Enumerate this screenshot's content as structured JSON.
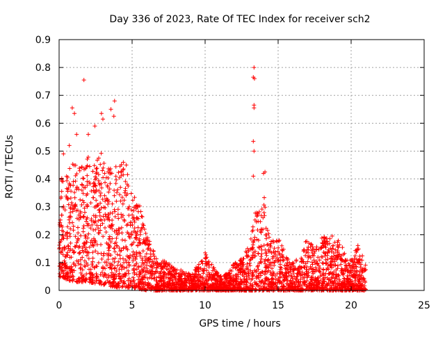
{
  "chart_data": {
    "type": "scatter",
    "title": "Day 336 of 2023, Rate Of TEC Index for receiver sch2",
    "xlabel": "GPS time / hours",
    "ylabel": "ROTI / TECUs",
    "xlim": [
      0,
      25
    ],
    "ylim": [
      0,
      0.9
    ],
    "x_ticks": [
      "0",
      "5",
      "10",
      "15",
      "20",
      "25"
    ],
    "y_ticks": [
      "0",
      "0.1",
      "0.2",
      "0.3",
      "0.4",
      "0.5",
      "0.6",
      "0.7",
      "0.8",
      "0.9"
    ],
    "x_tick_values": [
      0,
      5,
      10,
      15,
      20,
      25
    ],
    "y_tick_values": [
      0,
      0.1,
      0.2,
      0.3,
      0.4,
      0.5,
      0.6,
      0.7,
      0.8,
      0.9
    ],
    "grid": true,
    "marker": "+",
    "color": "#ff0000",
    "series": [
      {
        "name": "ROTI",
        "outliers": [
          [
            1.7,
            0.755
          ],
          [
            0.9,
            0.655
          ],
          [
            1.05,
            0.635
          ],
          [
            3.8,
            0.68
          ],
          [
            3.55,
            0.65
          ],
          [
            3.75,
            0.625
          ],
          [
            2.9,
            0.635
          ],
          [
            3.0,
            0.615
          ],
          [
            2.45,
            0.59
          ],
          [
            2.0,
            0.56
          ],
          [
            1.2,
            0.56
          ],
          [
            13.35,
            0.8
          ],
          [
            13.3,
            0.765
          ],
          [
            13.38,
            0.76
          ],
          [
            13.35,
            0.665
          ],
          [
            13.35,
            0.655
          ],
          [
            13.3,
            0.535
          ],
          [
            13.35,
            0.5
          ],
          [
            14.1,
            0.425
          ],
          [
            14.0,
            0.42
          ],
          [
            13.3,
            0.41
          ],
          [
            4.4,
            0.46
          ],
          [
            4.6,
            0.45
          ],
          [
            0.7,
            0.52
          ],
          [
            0.3,
            0.49
          ]
        ],
        "envelope": [
          [
            0,
            0.45
          ],
          [
            0.5,
            0.42
          ],
          [
            1,
            0.46
          ],
          [
            1.5,
            0.46
          ],
          [
            2,
            0.5
          ],
          [
            2.5,
            0.48
          ],
          [
            3,
            0.5
          ],
          [
            3.5,
            0.44
          ],
          [
            4,
            0.45
          ],
          [
            4.5,
            0.46
          ],
          [
            5,
            0.36
          ],
          [
            5.5,
            0.31
          ],
          [
            6,
            0.2
          ],
          [
            6.5,
            0.15
          ],
          [
            7,
            0.11
          ],
          [
            7.5,
            0.1
          ],
          [
            8,
            0.08
          ],
          [
            8.5,
            0.07
          ],
          [
            9,
            0.06
          ],
          [
            9.5,
            0.09
          ],
          [
            10,
            0.14
          ],
          [
            10.5,
            0.09
          ],
          [
            11,
            0.05
          ],
          [
            11.5,
            0.06
          ],
          [
            12,
            0.1
          ],
          [
            12.5,
            0.12
          ],
          [
            13,
            0.16
          ],
          [
            13.5,
            0.3
          ],
          [
            14,
            0.35
          ],
          [
            14.5,
            0.18
          ],
          [
            15,
            0.2
          ],
          [
            15.5,
            0.13
          ],
          [
            16,
            0.1
          ],
          [
            16.5,
            0.13
          ],
          [
            17,
            0.19
          ],
          [
            17.5,
            0.15
          ],
          [
            18,
            0.19
          ],
          [
            18.5,
            0.2
          ],
          [
            19,
            0.19
          ],
          [
            19.5,
            0.15
          ],
          [
            20,
            0.11
          ],
          [
            20.5,
            0.17
          ],
          [
            21,
            0.1
          ]
        ],
        "floor": [
          [
            0,
            0.05
          ],
          [
            1,
            0.03
          ],
          [
            2,
            0.03
          ],
          [
            3,
            0.02
          ],
          [
            4,
            0.01
          ],
          [
            5,
            0.01
          ],
          [
            6,
            0.0
          ],
          [
            8,
            0.0
          ],
          [
            10,
            0.0
          ],
          [
            12,
            0.0
          ],
          [
            14,
            0.0
          ],
          [
            16,
            0.0
          ],
          [
            18,
            0.0
          ],
          [
            20,
            0.0
          ],
          [
            21,
            0.0
          ]
        ],
        "x_range": [
          0,
          21
        ]
      }
    ]
  }
}
